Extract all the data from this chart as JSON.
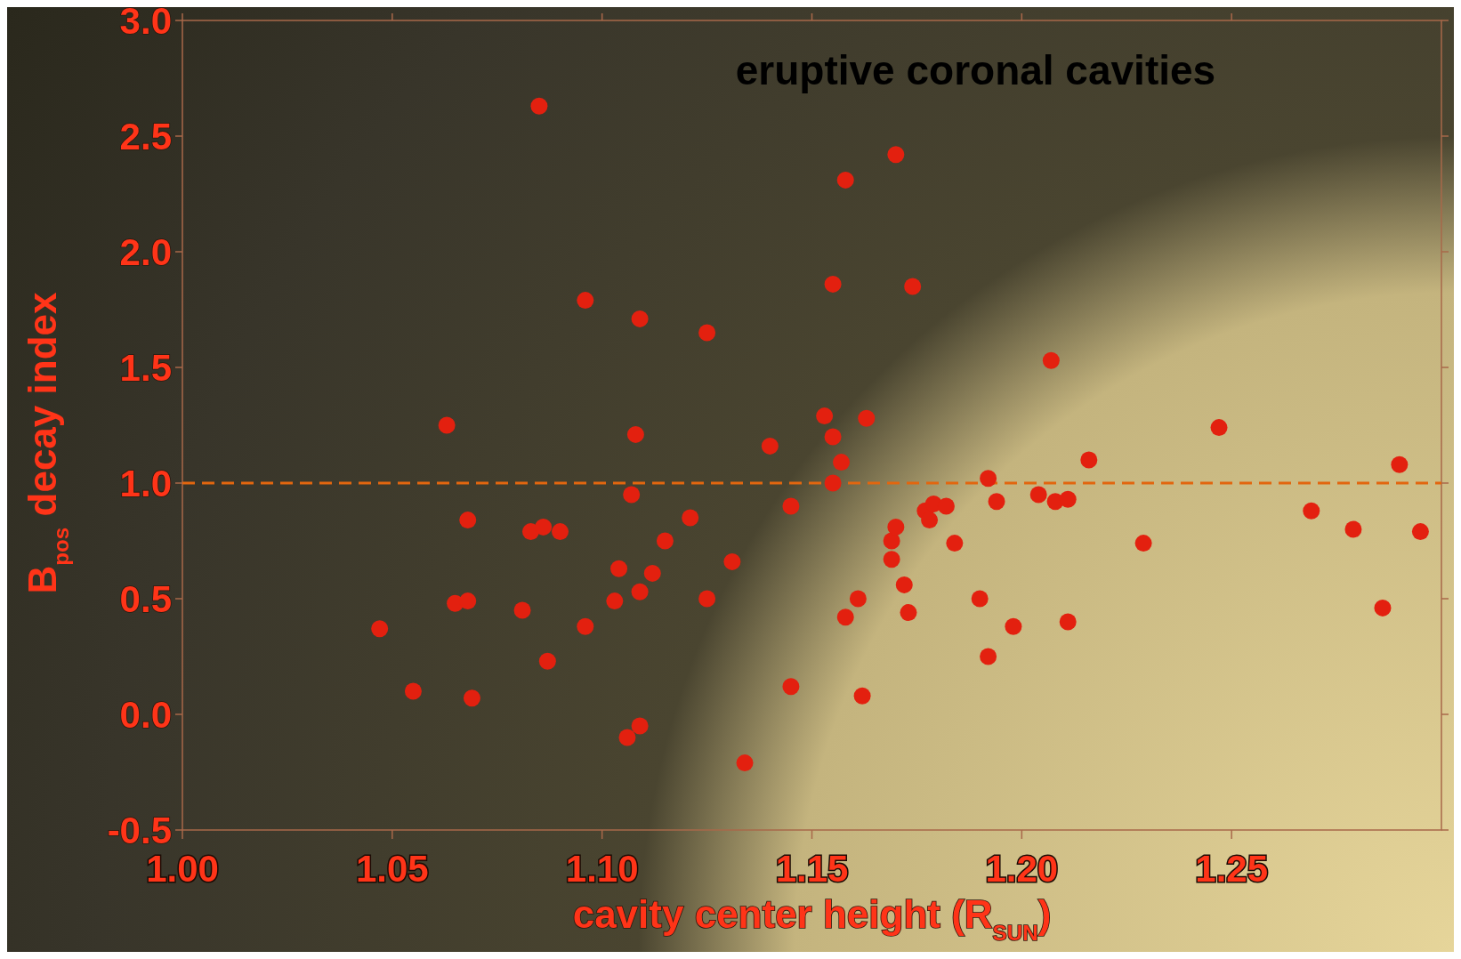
{
  "chart_data": {
    "type": "scatter",
    "title": "eruptive coronal cavities",
    "xlabel": "cavity center height (R$_{SUN}$)",
    "ylabel": "B$_{pos}$ decay index",
    "xlim": [
      1.0,
      1.3
    ],
    "ylim": [
      -0.5,
      3.0
    ],
    "xticks": [
      {
        "value": 1.0,
        "label": "1.00"
      },
      {
        "value": 1.05,
        "label": "1.05"
      },
      {
        "value": 1.1,
        "label": "1.10"
      },
      {
        "value": 1.15,
        "label": "1.15"
      },
      {
        "value": 1.2,
        "label": "1.20"
      },
      {
        "value": 1.25,
        "label": "1.25"
      }
    ],
    "yticks": [
      {
        "value": -0.5,
        "label": "-0.5"
      },
      {
        "value": 0,
        "label": "0.0"
      },
      {
        "value": 0.5,
        "label": "0.5"
      },
      {
        "value": 1,
        "label": "1.0"
      },
      {
        "value": 1.5,
        "label": "1.5"
      },
      {
        "value": 2,
        "label": "2.0"
      },
      {
        "value": 2.5,
        "label": "2.5"
      },
      {
        "value": 3,
        "label": "3.0"
      }
    ],
    "grid": false,
    "marker": "circle",
    "ref_lines": [
      {
        "axis": "y",
        "value": 1.0,
        "color": "#e2660f",
        "line_style": "dashed"
      }
    ],
    "series": [
      {
        "color": "#e3200f",
        "x": [
          1.047,
          1.055,
          1.063,
          1.065,
          1.068,
          1.068,
          1.069,
          1.081,
          1.083,
          1.085,
          1.086,
          1.087,
          1.09,
          1.096,
          1.096,
          1.103,
          1.104,
          1.106,
          1.107,
          1.108,
          1.109,
          1.109,
          1.109,
          1.112,
          1.115,
          1.121,
          1.125,
          1.125,
          1.131,
          1.134,
          1.14,
          1.145,
          1.145,
          1.153,
          1.155,
          1.155,
          1.155,
          1.157,
          1.158,
          1.158,
          1.161,
          1.162,
          1.163,
          1.169,
          1.169,
          1.17,
          1.17,
          1.172,
          1.173,
          1.174,
          1.177,
          1.178,
          1.179,
          1.182,
          1.184,
          1.19,
          1.192,
          1.192,
          1.194,
          1.198,
          1.204,
          1.207,
          1.208,
          1.211,
          1.211,
          1.216,
          1.229,
          1.247,
          1.269,
          1.279,
          1.286,
          1.29,
          1.295
        ],
        "values": [
          0.37,
          0.1,
          1.25,
          0.48,
          0.49,
          0.84,
          0.07,
          0.45,
          0.79,
          2.63,
          0.81,
          0.23,
          0.79,
          0.38,
          1.79,
          0.49,
          0.63,
          -0.1,
          0.95,
          1.21,
          1.71,
          0.53,
          -0.05,
          0.61,
          0.75,
          0.85,
          1.65,
          0.5,
          0.66,
          -0.21,
          1.16,
          0.9,
          0.12,
          1.29,
          1.2,
          1.86,
          1.0,
          1.09,
          2.31,
          0.42,
          0.5,
          0.08,
          1.28,
          0.67,
          0.75,
          0.81,
          2.42,
          0.56,
          0.44,
          1.85,
          0.88,
          0.84,
          0.91,
          0.9,
          0.74,
          0.5,
          1.02,
          0.25,
          0.92,
          0.38,
          0.95,
          1.53,
          0.92,
          0.93,
          0.4,
          1.1,
          0.74,
          1.24,
          0.88,
          0.8,
          0.46,
          1.08,
          0.79
        ]
      }
    ]
  }
}
